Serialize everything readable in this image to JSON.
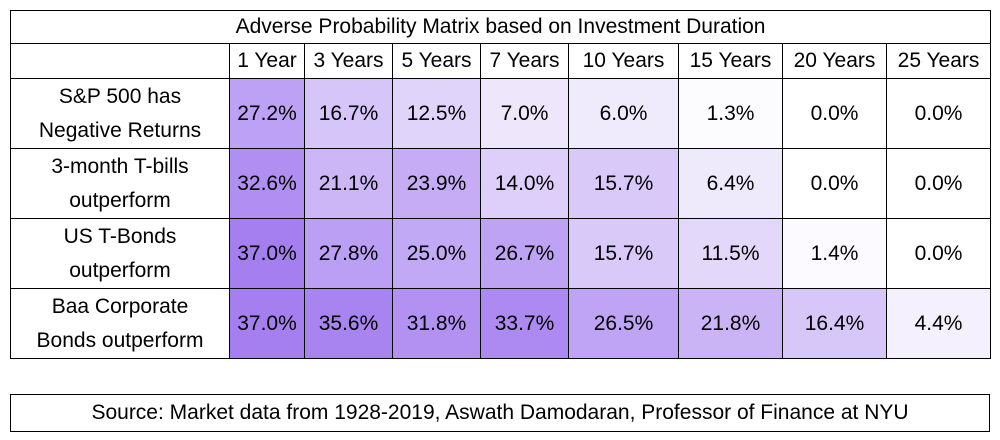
{
  "chart_data": {
    "type": "heatmap",
    "title": "Adverse Probability Matrix based on Investment Duration",
    "columns": [
      "1 Year",
      "3 Years",
      "5 Years",
      "7 Years",
      "10 Years",
      "15 Years",
      "20 Years",
      "25 Years"
    ],
    "rows": [
      {
        "label_lines": [
          "S&P 500 has",
          "Negative Returns"
        ],
        "values": [
          27.2,
          16.7,
          12.5,
          7.0,
          6.0,
          1.3,
          0.0,
          0.0
        ],
        "labels": [
          "27.2%",
          "16.7%",
          "12.5%",
          "7.0%",
          "6.0%",
          "1.3%",
          "0.0%",
          "0.0%"
        ]
      },
      {
        "label_lines": [
          "3-month T-bills",
          "outperform"
        ],
        "values": [
          32.6,
          21.1,
          23.9,
          14.0,
          15.7,
          6.4,
          0.0,
          0.0
        ],
        "labels": [
          "32.6%",
          "21.1%",
          "23.9%",
          "14.0%",
          "15.7%",
          "6.4%",
          "0.0%",
          "0.0%"
        ]
      },
      {
        "label_lines": [
          "US T-Bonds",
          "outperform"
        ],
        "values": [
          37.0,
          27.8,
          25.0,
          26.7,
          15.7,
          11.5,
          1.4,
          0.0
        ],
        "labels": [
          "37.0%",
          "27.8%",
          "25.0%",
          "26.7%",
          "15.7%",
          "11.5%",
          "1.4%",
          "0.0%"
        ]
      },
      {
        "label_lines": [
          "Baa Corporate",
          "Bonds outperform"
        ],
        "values": [
          37.0,
          35.6,
          31.8,
          33.7,
          26.5,
          21.8,
          16.4,
          4.4
        ],
        "labels": [
          "37.0%",
          "35.6%",
          "31.8%",
          "33.7%",
          "26.5%",
          "21.8%",
          "16.4%",
          "4.4%"
        ]
      }
    ],
    "color_scale": {
      "min_value": 0.0,
      "max_value": 37.0,
      "low_color": "#ffffff",
      "high_color": "#a57ff0"
    }
  },
  "source": "Source: Market data from 1928-2019, Aswath Damodaran, Professor of Finance at NYU"
}
